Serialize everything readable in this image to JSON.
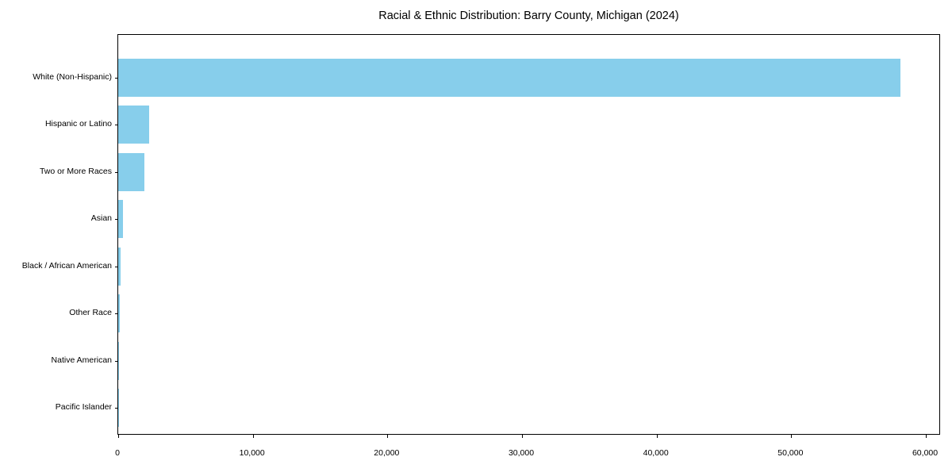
{
  "chart_data": {
    "type": "bar",
    "orientation": "horizontal",
    "title": "Racial & Ethnic Distribution: Barry County, Michigan (2024)",
    "xlabel": "",
    "ylabel": "",
    "categories": [
      "White (Non-Hispanic)",
      "Hispanic or Latino",
      "Two or More Races",
      "Asian",
      "Black / African American",
      "Other Race",
      "Native American",
      "Pacific Islander"
    ],
    "values": [
      58100,
      2300,
      1950,
      350,
      200,
      130,
      70,
      20
    ],
    "xlim": [
      0,
      61000
    ],
    "xticks": [
      0,
      10000,
      20000,
      30000,
      40000,
      50000,
      60000
    ],
    "xtick_labels": [
      "0",
      "10,000",
      "20,000",
      "30,000",
      "40,000",
      "50,000",
      "60,000"
    ],
    "bar_color": "#87CEEB",
    "grid": false,
    "legend_position": "none"
  }
}
